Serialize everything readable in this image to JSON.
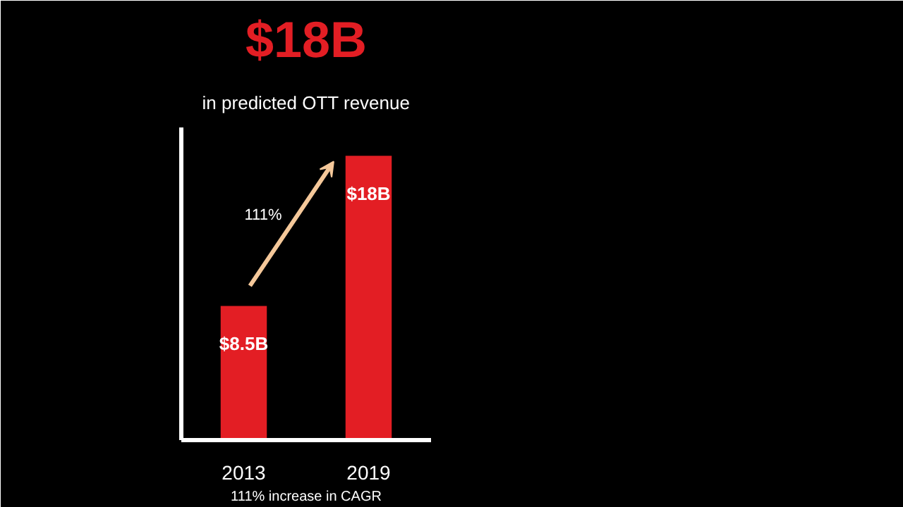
{
  "chart_data": {
    "type": "bar",
    "title": "$18B",
    "subtitle": "in predicted OTT revenue",
    "categories": [
      "2013",
      "2019"
    ],
    "values": [
      8.5,
      18
    ],
    "color": "#e31e24",
    "value_labels": [
      "$8.5B",
      "$18B"
    ],
    "annotations": [
      "111%",
      "111% increase in CAGR"
    ]
  }
}
